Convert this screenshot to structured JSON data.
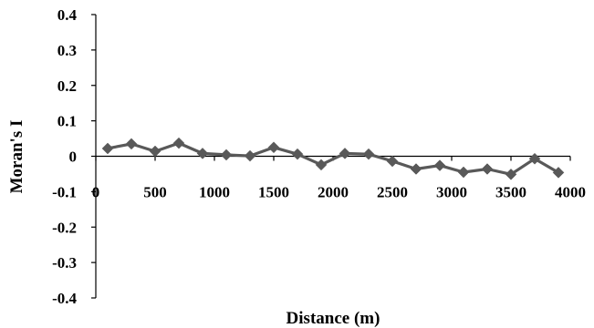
{
  "chart_data": {
    "type": "line",
    "xlabel": "Distance (m)",
    "ylabel": "Moran's I",
    "xlim": [
      0,
      4000
    ],
    "ylim": [
      -0.4,
      0.4
    ],
    "x_ticks": [
      0,
      500,
      1000,
      1500,
      2000,
      2500,
      3000,
      3500,
      4000
    ],
    "x_tick_labels": [
      "0",
      "500",
      "1000",
      "1500",
      "2000",
      "2500",
      "3000",
      "3500",
      "4000"
    ],
    "y_ticks": [
      0.4,
      0.3,
      0.2,
      0.1,
      0,
      -0.1,
      -0.2,
      -0.3,
      -0.4
    ],
    "y_tick_labels": [
      "0.4",
      "0.3",
      "0.2",
      "0.1",
      "0",
      "-0.1",
      "-0.2",
      "-0.3",
      "-0.4"
    ],
    "grid": false,
    "legend": "none",
    "series": [
      {
        "color": "#595959",
        "marker": "diamond",
        "x": [
          100,
          300,
          500,
          700,
          900,
          1100,
          1300,
          1500,
          1700,
          1900,
          2100,
          2300,
          2500,
          2700,
          2900,
          3100,
          3300,
          3500,
          3700,
          3900
        ],
        "values": [
          0.022,
          0.035,
          0.014,
          0.037,
          0.008,
          0.004,
          0.001,
          0.025,
          0.006,
          -0.024,
          0.008,
          0.006,
          -0.014,
          -0.036,
          -0.026,
          -0.045,
          -0.036,
          -0.051,
          -0.007,
          -0.046
        ]
      }
    ]
  }
}
